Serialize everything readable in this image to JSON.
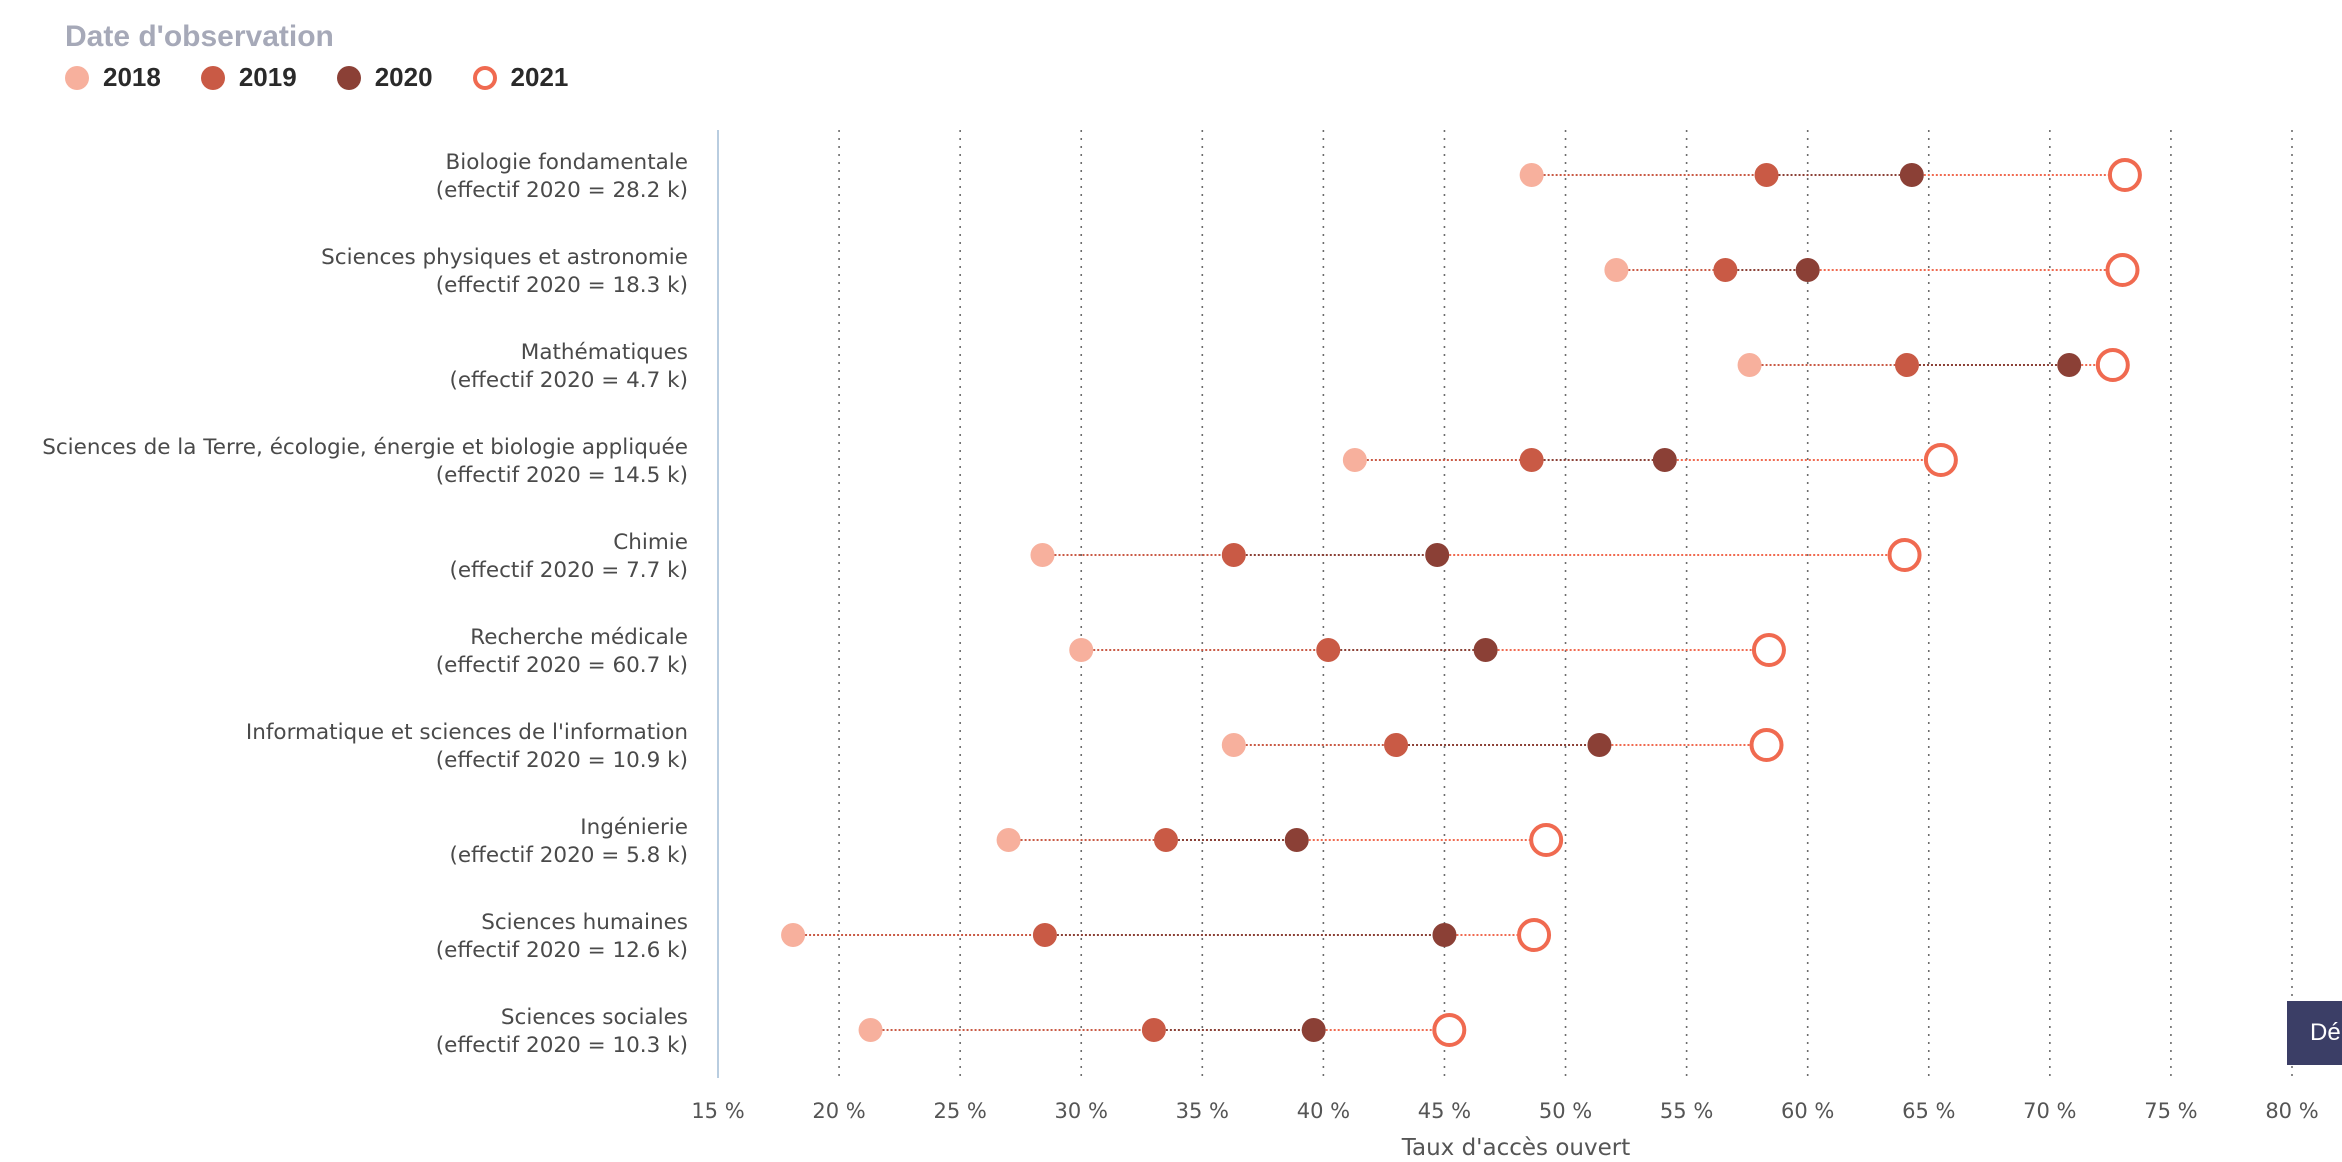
{
  "legend": {
    "title": "Date d'observation",
    "items": [
      {
        "label": "2018",
        "color": "#f7b09d",
        "style": "filled"
      },
      {
        "label": "2019",
        "color": "#c95a45",
        "style": "filled"
      },
      {
        "label": "2020",
        "color": "#8b4036",
        "style": "filled"
      },
      {
        "label": "2021",
        "color": "#f06a50",
        "style": "hollow"
      }
    ]
  },
  "download_button": {
    "label": "Dé"
  },
  "chart_data": {
    "type": "dumbbell",
    "xlabel": "Taux d'accès ouvert",
    "xlim": [
      15,
      80
    ],
    "x_ticks": [
      "15 %",
      "20 %",
      "25 %",
      "30 %",
      "35 %",
      "40 %",
      "45 %",
      "50 %",
      "55 %",
      "60 %",
      "65 %",
      "70 %",
      "75 %",
      "80 %"
    ],
    "grid": "vertical dotted",
    "series_names": [
      "2018",
      "2019",
      "2020",
      "2021"
    ],
    "categories": [
      {
        "name": "Biologie fondamentale",
        "sub": "(effectif 2020 = 28.2 k)",
        "values": [
          48.6,
          58.3,
          64.3,
          73.1
        ]
      },
      {
        "name": "Sciences physiques et astronomie",
        "sub": "(effectif 2020 = 18.3 k)",
        "values": [
          52.1,
          56.6,
          60.0,
          73.0
        ]
      },
      {
        "name": "Mathématiques",
        "sub": "(effectif 2020 = 4.7 k)",
        "values": [
          57.6,
          64.1,
          70.8,
          72.6
        ]
      },
      {
        "name": "Sciences de la Terre, écologie, énergie et biologie appliquée",
        "sub": "(effectif 2020 = 14.5 k)",
        "values": [
          41.3,
          48.6,
          54.1,
          65.5
        ]
      },
      {
        "name": "Chimie",
        "sub": "(effectif 2020 = 7.7 k)",
        "values": [
          28.4,
          36.3,
          44.7,
          64.0
        ]
      },
      {
        "name": "Recherche médicale",
        "sub": "(effectif 2020 = 60.7 k)",
        "values": [
          30.0,
          40.2,
          46.7,
          58.4
        ]
      },
      {
        "name": "Informatique et sciences de l'information",
        "sub": "(effectif 2020 = 10.9 k)",
        "values": [
          36.3,
          43.0,
          51.4,
          58.3
        ]
      },
      {
        "name": "Ingénierie",
        "sub": "(effectif 2020 = 5.8 k)",
        "values": [
          27.0,
          33.5,
          38.9,
          49.2
        ]
      },
      {
        "name": "Sciences humaines",
        "sub": "(effectif 2020 = 12.6 k)",
        "values": [
          18.1,
          28.5,
          45.0,
          48.7
        ]
      },
      {
        "name": "Sciences sociales",
        "sub": "(effectif 2020 = 10.3 k)",
        "values": [
          21.3,
          33.0,
          39.6,
          45.2
        ]
      }
    ]
  }
}
